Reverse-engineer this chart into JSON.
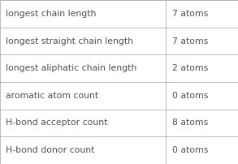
{
  "rows": [
    [
      "longest chain length",
      "7 atoms"
    ],
    [
      "longest straight chain length",
      "7 atoms"
    ],
    [
      "longest aliphatic chain length",
      "2 atoms"
    ],
    [
      "aromatic atom count",
      "0 atoms"
    ],
    [
      "H-bond acceptor count",
      "8 atoms"
    ],
    [
      "H-bond donor count",
      "0 atoms"
    ]
  ],
  "col_split": 0.695,
  "background_color": "#ffffff",
  "border_color": "#b0b0b0",
  "text_color": "#505050",
  "font_size": 7.8
}
